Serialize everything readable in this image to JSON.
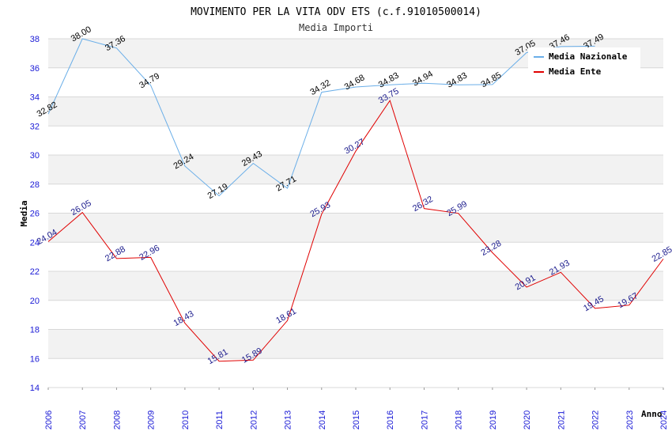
{
  "chart_data": {
    "type": "line",
    "title": "MOVIMENTO PER LA VITA ODV ETS (c.f.91010500014)",
    "subtitle": "Media Importi",
    "xlabel": "Anno",
    "ylabel": "Media",
    "ylim": [
      14,
      38
    ],
    "yticks": [
      "14",
      "16",
      "18",
      "20",
      "22",
      "24",
      "26",
      "28",
      "30",
      "32",
      "34",
      "36",
      "38"
    ],
    "categories": [
      "2006",
      "2007",
      "2008",
      "2009",
      "2010",
      "2011",
      "2012",
      "2013",
      "2014",
      "2015",
      "2016",
      "2017",
      "2018",
      "2019",
      "2020",
      "2021",
      "2022",
      "2023",
      "2024"
    ],
    "grid": true,
    "legend_position": "top-right",
    "series": [
      {
        "name": "Media Nazionale",
        "color": "#6aaee8",
        "values": [
          32.82,
          38.0,
          37.36,
          34.79,
          29.24,
          27.19,
          29.43,
          27.71,
          34.32,
          34.68,
          34.83,
          34.94,
          34.83,
          34.85,
          37.05,
          37.46,
          37.49,
          null,
          null
        ],
        "labels": [
          "32.82",
          "38.00",
          "37.36",
          "34.79",
          "29.24",
          "27.19",
          "29.43",
          "27.71",
          "34.32",
          "34.68",
          "34.83",
          "34.94",
          "34.83",
          "34.85",
          "37.05",
          "37.46",
          "37.49",
          "",
          ""
        ]
      },
      {
        "name": "Media Ente",
        "color": "#e00000",
        "values": [
          24.04,
          26.05,
          22.88,
          22.96,
          18.43,
          15.81,
          15.89,
          18.61,
          25.93,
          30.27,
          33.75,
          26.32,
          25.99,
          23.28,
          20.91,
          21.93,
          19.45,
          19.67,
          22.85
        ],
        "labels": [
          "24.04",
          "26.05",
          "22.88",
          "22.96",
          "18.43",
          "15.81",
          "15.89",
          "18.61",
          "25.93",
          "30.27",
          "33.75",
          "26.32",
          "25.99",
          "23.28",
          "20.91",
          "21.93",
          "19.45",
          "19.67",
          "22.85"
        ]
      }
    ]
  }
}
